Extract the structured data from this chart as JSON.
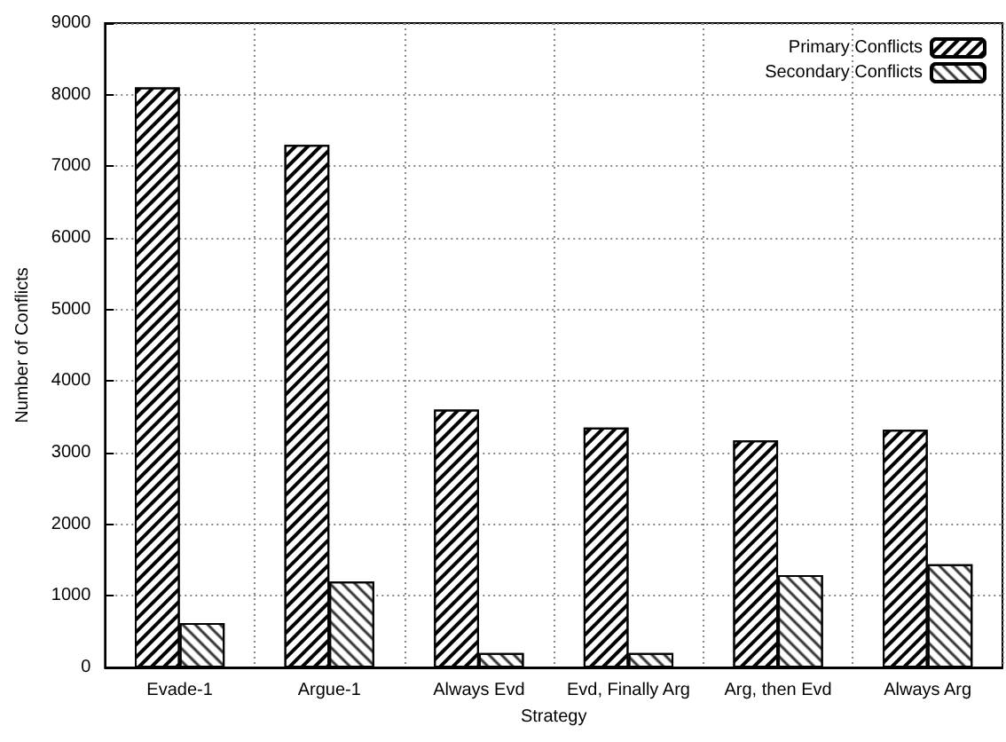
{
  "chart_data": {
    "type": "bar",
    "xlabel": "Strategy",
    "ylabel": "Number of Conflicts",
    "categories": [
      "Evade-1",
      "Argue-1",
      "Always Evd",
      "Evd, Finally Arg",
      "Arg, then Evd",
      "Always Arg"
    ],
    "series": [
      {
        "name": "Primary Conflicts",
        "color": "#000000",
        "values": [
          8100,
          7300,
          3600,
          3350,
          3170,
          3320
        ]
      },
      {
        "name": "Secondary Conflicts",
        "color": "#000000",
        "values": [
          620,
          1200,
          200,
          200,
          1290,
          1440
        ]
      }
    ],
    "ylim": [
      0,
      9000
    ],
    "yticks": [
      0,
      1000,
      2000,
      3000,
      4000,
      5000,
      6000,
      7000,
      8000,
      9000
    ],
    "grid": true,
    "legend": "top right"
  }
}
